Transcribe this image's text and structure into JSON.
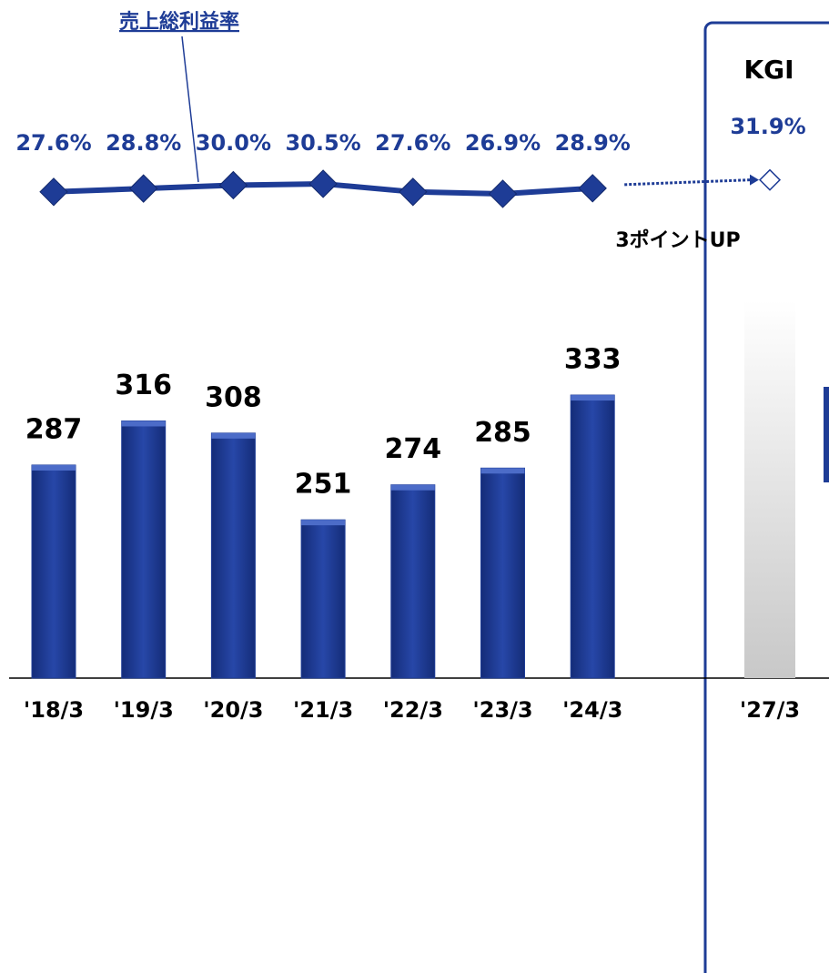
{
  "chart_data": {
    "type": "bar",
    "categories": [
      "'18/3",
      "'19/3",
      "'20/3",
      "'21/3",
      "'22/3",
      "'23/3",
      "'24/3",
      "'27/3"
    ],
    "series": [
      {
        "type": "bar",
        "color": "#1e3c96",
        "values": [
          287,
          316,
          308,
          251,
          274,
          285,
          333,
          null
        ]
      },
      {
        "type": "line",
        "name": "売上総利益率",
        "color": "#1e3c96",
        "axis": "y2",
        "values": [
          27.6,
          28.8,
          30.0,
          30.5,
          27.6,
          26.9,
          28.9,
          31.9
        ],
        "value_labels": [
          "27.6%",
          "28.8%",
          "30.0%",
          "30.5%",
          "27.6%",
          "26.9%",
          "28.9%",
          "31.9%"
        ]
      }
    ],
    "ylim": [
      147,
      473
    ],
    "y2lim": [
      11.5,
      47.5
    ],
    "annotations": [
      "KGI",
      "3ポイントUP"
    ]
  }
}
